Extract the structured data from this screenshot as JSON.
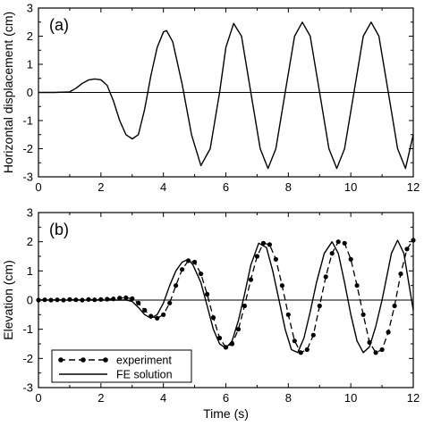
{
  "chart_data": [
    {
      "type": "line",
      "panel_label": "(a)",
      "xlabel": "",
      "ylabel": "Horizontal displacement (cm)",
      "xlim": [
        0,
        12
      ],
      "ylim": [
        -3,
        3
      ],
      "xticks": [
        0,
        2,
        4,
        6,
        8,
        10,
        12
      ],
      "yticks": [
        -3,
        -2,
        -1,
        0,
        1,
        2,
        3
      ],
      "zero_line": true,
      "grid": false,
      "series": [
        {
          "x": [
            0,
            0.5,
            1.0,
            1.2,
            1.4,
            1.6,
            1.8,
            2.0,
            2.2,
            2.4,
            2.6,
            2.8,
            3.0,
            3.2,
            3.4,
            3.6,
            3.8,
            4.0,
            4.1,
            4.3,
            4.6,
            4.9,
            5.2,
            5.5,
            5.8,
            6.0,
            6.25,
            6.5,
            6.8,
            7.1,
            7.35,
            7.6,
            7.9,
            8.2,
            8.45,
            8.7,
            9.0,
            9.3,
            9.55,
            9.8,
            10.1,
            10.4,
            10.65,
            10.9,
            11.2,
            11.5,
            11.75,
            12.0
          ],
          "y": [
            0,
            0,
            0.02,
            0.15,
            0.32,
            0.44,
            0.48,
            0.45,
            0.25,
            -0.3,
            -1.0,
            -1.5,
            -1.65,
            -1.5,
            -0.6,
            0.6,
            1.6,
            2.15,
            2.2,
            1.8,
            0.3,
            -1.5,
            -2.6,
            -2.0,
            0.0,
            1.6,
            2.45,
            2.0,
            0.0,
            -2.0,
            -2.7,
            -2.0,
            0.0,
            2.0,
            2.5,
            2.0,
            0.0,
            -2.0,
            -2.7,
            -2.0,
            0.0,
            2.0,
            2.5,
            2.0,
            0.0,
            -2.0,
            -2.7,
            -1.5
          ]
        }
      ]
    },
    {
      "type": "line",
      "panel_label": "(b)",
      "xlabel": "Time (s)",
      "ylabel": "Elevation (cm)",
      "xlim": [
        0,
        12
      ],
      "ylim": [
        -3,
        3
      ],
      "xticks": [
        0,
        2,
        4,
        6,
        8,
        10,
        12
      ],
      "yticks": [
        -3,
        -2,
        -1,
        0,
        1,
        2,
        3
      ],
      "zero_line": true,
      "grid": false,
      "legend_position": "bottom-left",
      "series": [
        {
          "name": "experiment",
          "style": "dashed-with-markers",
          "x": [
            0,
            0.2,
            0.4,
            0.6,
            0.8,
            1.0,
            1.2,
            1.4,
            1.6,
            1.8,
            2.0,
            2.2,
            2.4,
            2.6,
            2.8,
            3.0,
            3.2,
            3.4,
            3.6,
            3.8,
            4.0,
            4.2,
            4.4,
            4.6,
            4.8,
            5.0,
            5.2,
            5.4,
            5.6,
            5.8,
            6.0,
            6.2,
            6.4,
            6.6,
            6.8,
            7.0,
            7.2,
            7.4,
            7.6,
            7.8,
            8.0,
            8.2,
            8.4,
            8.6,
            8.8,
            9.0,
            9.2,
            9.4,
            9.6,
            9.8,
            10.0,
            10.2,
            10.4,
            10.6,
            10.8,
            11.0,
            11.2,
            11.4,
            11.6,
            11.8,
            12.0
          ],
          "y": [
            0.0,
            0.01,
            0.0,
            0.01,
            0.0,
            0.02,
            0.01,
            0.0,
            0.02,
            0.01,
            0.02,
            0.03,
            0.04,
            0.07,
            0.08,
            0.05,
            -0.1,
            -0.35,
            -0.55,
            -0.62,
            -0.5,
            -0.1,
            0.5,
            1.05,
            1.35,
            1.3,
            0.9,
            0.2,
            -0.6,
            -1.3,
            -1.62,
            -1.5,
            -1.0,
            -0.2,
            0.7,
            1.5,
            1.95,
            1.9,
            1.4,
            0.5,
            -0.5,
            -1.4,
            -1.8,
            -1.7,
            -1.2,
            -0.2,
            0.8,
            1.6,
            2.0,
            1.95,
            1.4,
            0.5,
            -0.5,
            -1.45,
            -1.8,
            -1.7,
            -1.1,
            -0.2,
            0.9,
            1.75,
            2.05
          ]
        },
        {
          "name": "FE solution",
          "style": "solid",
          "x": [
            0,
            0.5,
            1.0,
            1.5,
            2.0,
            2.5,
            2.8,
            3.0,
            3.2,
            3.4,
            3.6,
            3.8,
            4.0,
            4.2,
            4.4,
            4.6,
            4.8,
            4.95,
            5.2,
            5.4,
            5.6,
            5.8,
            6.0,
            6.2,
            6.4,
            6.6,
            6.8,
            7.05,
            7.3,
            7.5,
            7.7,
            7.9,
            8.1,
            8.3,
            8.5,
            8.7,
            8.9,
            9.15,
            9.4,
            9.6,
            9.8,
            10.0,
            10.2,
            10.4,
            10.6,
            10.8,
            11.0,
            11.3,
            11.5,
            11.7,
            11.9,
            12.0
          ],
          "y": [
            0.0,
            0.0,
            0.0,
            0.0,
            0.0,
            0.0,
            0.0,
            -0.05,
            -0.25,
            -0.5,
            -0.62,
            -0.5,
            -0.1,
            0.5,
            1.0,
            1.3,
            1.4,
            1.2,
            0.6,
            -0.2,
            -1.0,
            -1.5,
            -1.65,
            -1.4,
            -0.7,
            0.2,
            1.2,
            1.95,
            1.8,
            1.0,
            0.0,
            -1.0,
            -1.7,
            -1.8,
            -1.3,
            -0.4,
            0.6,
            1.6,
            2.0,
            1.6,
            0.6,
            -0.5,
            -1.4,
            -1.8,
            -1.6,
            -0.9,
            0.0,
            1.6,
            2.05,
            1.6,
            0.3,
            -0.35
          ]
        }
      ]
    }
  ]
}
